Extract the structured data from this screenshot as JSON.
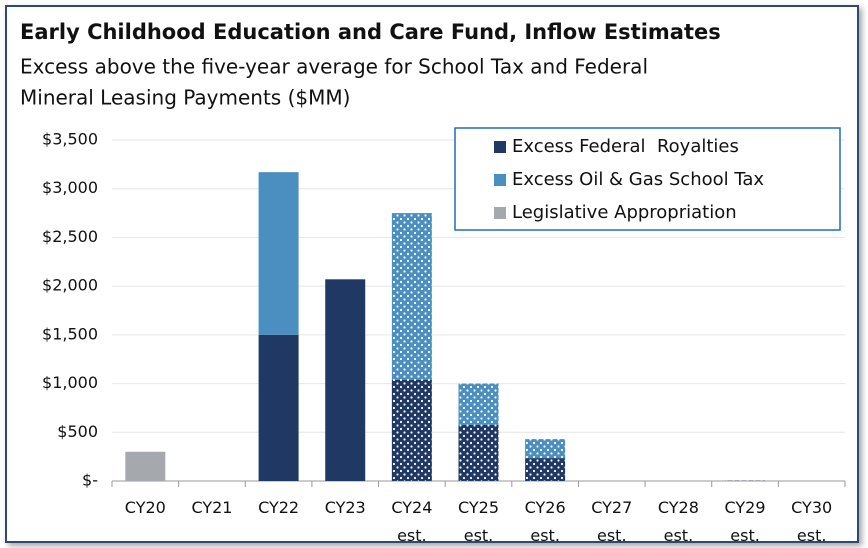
{
  "chart_data": {
    "type": "stacked_bar",
    "title": "Early Childhood Education and Care Fund, Inflow Estimates",
    "subtitle": [
      "Excess above the five-year average for School Tax and Federal",
      "Mineral Leasing Payments ($MM)"
    ],
    "categories": [
      "CY20",
      "CY21",
      "CY22",
      "CY23",
      "CY24 est.",
      "CY25 est.",
      "CY26 est.",
      "CY27 est.",
      "CY28 est.",
      "CY29 est.",
      "CY30 est."
    ],
    "series": [
      {
        "name": "Excess Federal  Royalties",
        "color": "#1f3864",
        "values": [
          0,
          0,
          1500,
          2070,
          1040,
          575,
          235,
          0,
          0,
          0,
          0
        ]
      },
      {
        "name": "Excess Oil & Gas School Tax",
        "color": "#4a8fc0",
        "values": [
          0,
          0,
          1670,
          0,
          1710,
          425,
          195,
          0,
          0,
          0,
          0
        ]
      },
      {
        "name": "Legislative Appropriation",
        "color": "#a5a8ad",
        "values": [
          300,
          0,
          0,
          0,
          0,
          0,
          0,
          0,
          0,
          10,
          0
        ]
      }
    ],
    "ylim": [
      0,
      3500
    ],
    "yticks": [
      {
        "value": 0,
        "label": "$-"
      },
      {
        "value": 500,
        "label": "$500"
      },
      {
        "value": 1000,
        "label": "$1,000"
      },
      {
        "value": 1500,
        "label": "$1,500"
      },
      {
        "value": 2000,
        "label": "$2,000"
      },
      {
        "value": 2500,
        "label": "$2,500"
      },
      {
        "value": 3000,
        "label": "$3,000"
      },
      {
        "value": 3500,
        "label": "$3,500"
      }
    ],
    "grid": true,
    "legend": "upper right"
  }
}
